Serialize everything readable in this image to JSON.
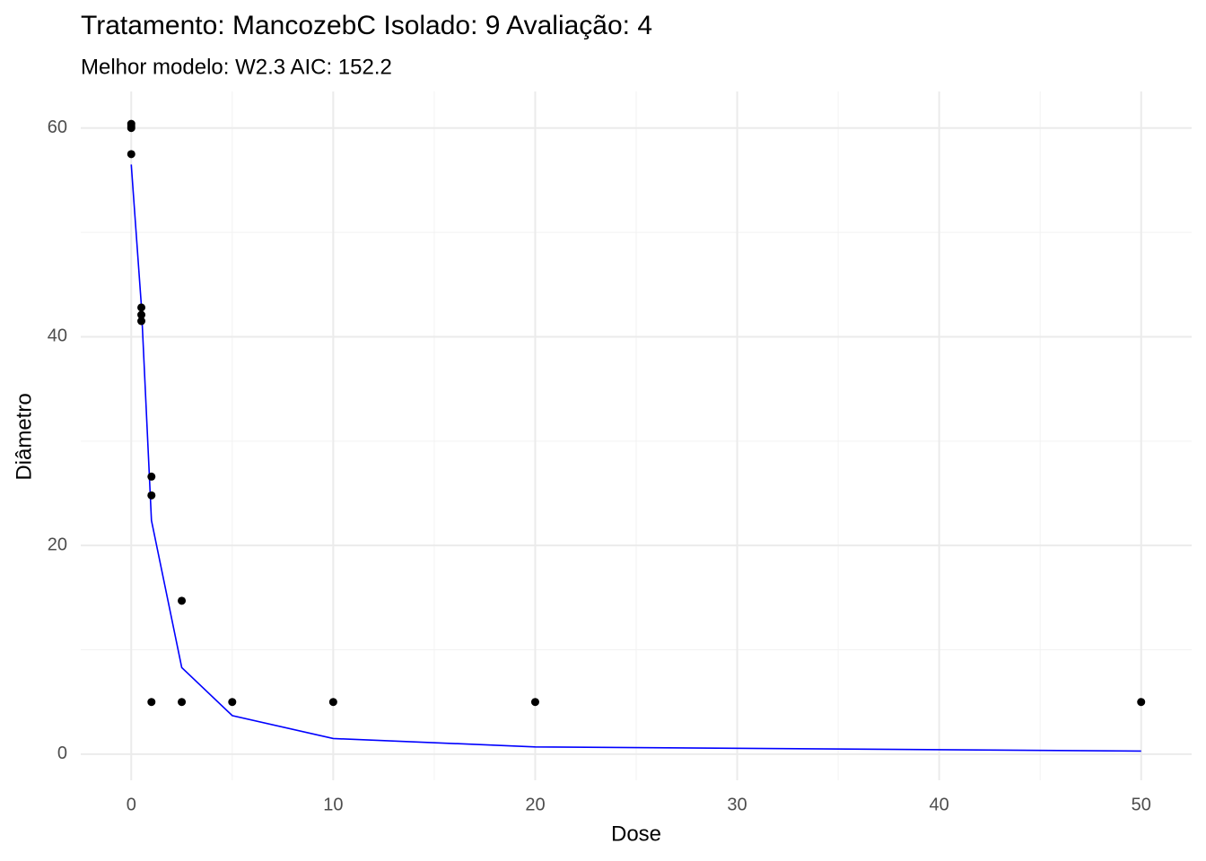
{
  "chart_data": {
    "type": "scatter",
    "title": "Tratamento: MancozebC Isolado: 9 Avaliação: 4",
    "subtitle": "Melhor modelo: W2.3 AIC: 152.2",
    "x_label": "Dose",
    "y_label": "Diâmetro",
    "xlim": [
      -2.5,
      52.5
    ],
    "ylim": [
      -2.5,
      63.5
    ],
    "xticks": [
      0,
      10,
      20,
      30,
      40,
      50
    ],
    "yticks": [
      0,
      20,
      40,
      60
    ],
    "xminorticks": [
      5,
      15,
      25,
      35,
      45
    ],
    "yminorticks": [
      10,
      30,
      50
    ],
    "grid": true,
    "points": {
      "color": "#000000",
      "x": [
        0,
        0,
        0,
        0,
        0.5,
        0.5,
        0.5,
        1,
        1,
        1,
        2.5,
        2.5,
        5,
        10,
        20,
        50
      ],
      "y": [
        60.4,
        60.2,
        60.0,
        57.5,
        42.8,
        42.1,
        41.5,
        26.6,
        24.8,
        5,
        14.7,
        5,
        5,
        5,
        5,
        5
      ]
    },
    "fit": {
      "color": "#0000ff",
      "x": [
        0,
        0.5,
        1,
        2.5,
        5,
        10,
        20,
        50
      ],
      "y": [
        56.5,
        43,
        22.4,
        8.3,
        3.7,
        1.5,
        0.7,
        0.3
      ]
    }
  }
}
